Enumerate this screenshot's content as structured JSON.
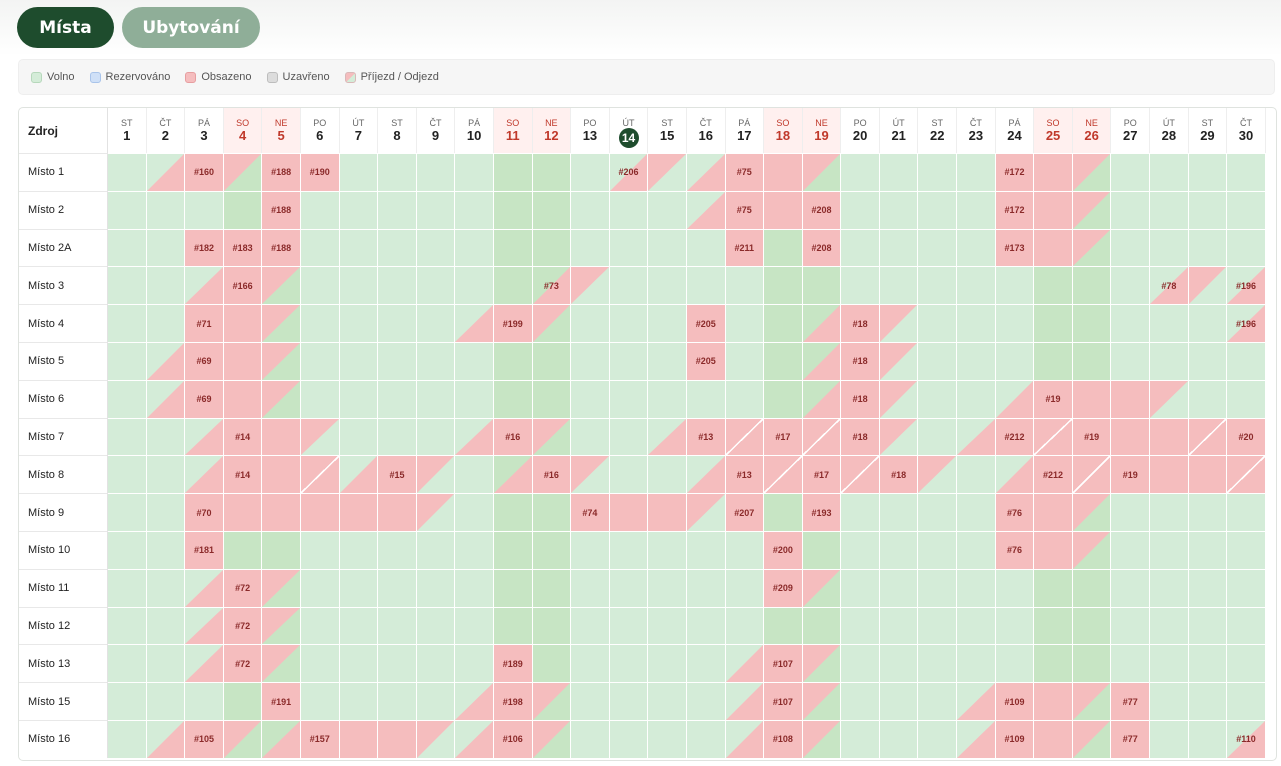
{
  "tabs": [
    {
      "label": "Místa",
      "active": true
    },
    {
      "label": "Ubytování",
      "active": false
    }
  ],
  "legend": [
    {
      "label": "Volno",
      "color": "#d4ecd8"
    },
    {
      "label": "Rezervováno",
      "color": "#cfe0f7"
    },
    {
      "label": "Obsazeno",
      "color": "#f5bdbe"
    },
    {
      "label": "Uzavřeno",
      "color": "#dcdcdc"
    },
    {
      "label": "Příjezd / Odjezd",
      "color": "split"
    }
  ],
  "header_label": "Zdroj",
  "today": 14,
  "days": [
    {
      "dn": "ST",
      "d": "1"
    },
    {
      "dn": "ČT",
      "d": "2"
    },
    {
      "dn": "PÁ",
      "d": "3"
    },
    {
      "dn": "SO",
      "d": "4",
      "we": true
    },
    {
      "dn": "NE",
      "d": "5",
      "we": true
    },
    {
      "dn": "PO",
      "d": "6"
    },
    {
      "dn": "ÚT",
      "d": "7"
    },
    {
      "dn": "ST",
      "d": "8"
    },
    {
      "dn": "ČT",
      "d": "9"
    },
    {
      "dn": "PÁ",
      "d": "10"
    },
    {
      "dn": "SO",
      "d": "11",
      "we": true
    },
    {
      "dn": "NE",
      "d": "12",
      "we": true
    },
    {
      "dn": "PO",
      "d": "13"
    },
    {
      "dn": "ÚT",
      "d": "14",
      "today": true
    },
    {
      "dn": "ST",
      "d": "15"
    },
    {
      "dn": "ČT",
      "d": "16"
    },
    {
      "dn": "PÁ",
      "d": "17"
    },
    {
      "dn": "SO",
      "d": "18",
      "we": true
    },
    {
      "dn": "NE",
      "d": "19",
      "we": true
    },
    {
      "dn": "PO",
      "d": "20"
    },
    {
      "dn": "ÚT",
      "d": "21"
    },
    {
      "dn": "ST",
      "d": "22"
    },
    {
      "dn": "ČT",
      "d": "23"
    },
    {
      "dn": "PÁ",
      "d": "24"
    },
    {
      "dn": "SO",
      "d": "25",
      "we": true
    },
    {
      "dn": "NE",
      "d": "26",
      "we": true
    },
    {
      "dn": "PO",
      "d": "27"
    },
    {
      "dn": "ÚT",
      "d": "28"
    },
    {
      "dn": "ST",
      "d": "29"
    },
    {
      "dn": "ČT",
      "d": "30"
    }
  ],
  "rows": [
    {
      "name": "Místo 1",
      "cells": {
        "2": "s",
        "3": "f|#160",
        "4": "e",
        "5": "f|#188",
        "6": "f|#190",
        "14": "s|#206",
        "15": "e",
        "16": "s",
        "17": "f|#75",
        "18": "f",
        "19": "e",
        "24": "f|#172",
        "25": "f",
        "26": "e"
      }
    },
    {
      "name": "Místo 2",
      "cells": {
        "5": "f|#188",
        "16": "s",
        "17": "f|#75",
        "18": "f",
        "19": "f|#208",
        "24": "f|#172",
        "25": "f",
        "26": "e"
      }
    },
    {
      "name": "Místo 2A",
      "cells": {
        "3": "f|#182",
        "4": "f|#183",
        "5": "f|#188",
        "17": "f|#211",
        "19": "f|#208",
        "24": "f|#173",
        "25": "f",
        "26": "e"
      }
    },
    {
      "name": "Místo 3",
      "cells": {
        "3": "s",
        "4": "f|#166",
        "5": "e",
        "12": "s|#73",
        "13": "e",
        "28": "s|#78",
        "29": "e",
        "30": "s|#196"
      }
    },
    {
      "name": "Místo 4",
      "cells": {
        "3": "f|#71",
        "4": "f",
        "5": "e",
        "10": "s",
        "11": "f|#199",
        "12": "e",
        "16": "f|#205",
        "19": "s",
        "20": "f|#18",
        "21": "e",
        "30": "s|#196"
      }
    },
    {
      "name": "Místo 5",
      "cells": {
        "2": "s",
        "3": "f|#69",
        "4": "f",
        "5": "e",
        "16": "f|#205",
        "19": "s",
        "20": "f|#18",
        "21": "e"
      }
    },
    {
      "name": "Místo 6",
      "cells": {
        "2": "s",
        "3": "f|#69",
        "4": "f",
        "5": "e",
        "19": "s",
        "20": "f|#18",
        "21": "e",
        "24": "s",
        "25": "f|#19",
        "26": "f",
        "27": "f",
        "28": "e"
      }
    },
    {
      "name": "Místo 7",
      "cells": {
        "3": "s",
        "4": "f|#14",
        "5": "f",
        "6": "e",
        "10": "s",
        "11": "f|#16",
        "12": "e",
        "15": "s",
        "16": "f|#13",
        "17": "x",
        "18": "f|#17",
        "19": "x",
        "20": "f|#18",
        "21": "e",
        "23": "s",
        "24": "f|#212",
        "25": "x",
        "26": "f|#19",
        "27": "f",
        "28": "f",
        "29": "x",
        "30": "f|#20",
        "31": "e"
      }
    },
    {
      "name": "Místo 8",
      "cells": {
        "3": "s",
        "4": "f|#14",
        "5": "f",
        "6": "x",
        "7": "s",
        "8": "f|#15",
        "9": "e",
        "11": "s",
        "12": "f|#16",
        "13": "e",
        "16": "s",
        "17": "f|#13",
        "18": "x",
        "19": "f|#17",
        "20": "x",
        "21": "f|#18",
        "22": "e",
        "24": "s",
        "25": "f|#212",
        "26": "x",
        "27": "f|#19",
        "28": "f",
        "29": "f",
        "30": "x",
        "31": "f|#20"
      }
    },
    {
      "name": "Místo 9",
      "cells": {
        "3": "f|#70",
        "4": "f",
        "5": "f",
        "6": "f",
        "7": "f",
        "8": "f",
        "9": "e",
        "13": "f|#74",
        "14": "f",
        "15": "f",
        "16": "e",
        "17": "f|#207",
        "19": "f|#193",
        "24": "f|#76",
        "25": "f",
        "26": "e"
      }
    },
    {
      "name": "Místo 10",
      "cells": {
        "3": "f|#181",
        "18": "f|#200",
        "24": "f|#76",
        "25": "f",
        "26": "e"
      }
    },
    {
      "name": "Místo 11",
      "cells": {
        "3": "s",
        "4": "f|#72",
        "5": "e",
        "18": "f|#209",
        "19": "e"
      }
    },
    {
      "name": "Místo 12",
      "cells": {
        "3": "s",
        "4": "f|#72",
        "5": "e"
      }
    },
    {
      "name": "Místo 13",
      "cells": {
        "3": "s",
        "4": "f|#72",
        "5": "e",
        "11": "f|#189",
        "17": "s",
        "18": "f|#107",
        "19": "e"
      }
    },
    {
      "name": "Místo 15",
      "cells": {
        "5": "f|#191",
        "10": "s",
        "11": "f|#198",
        "12": "e",
        "17": "s",
        "18": "f|#107",
        "19": "e",
        "23": "s",
        "24": "f|#109",
        "25": "f",
        "26": "e",
        "27": "f|#77"
      }
    },
    {
      "name": "Místo 16",
      "cells": {
        "2": "s",
        "3": "f|#105",
        "4": "e",
        "5": "s",
        "6": "f|#157",
        "7": "f",
        "8": "f",
        "9": "e",
        "10": "s",
        "11": "f|#106",
        "12": "e",
        "17": "s",
        "18": "f|#108",
        "19": "e",
        "23": "s",
        "24": "f|#109",
        "25": "f",
        "26": "e",
        "27": "f|#77",
        "30": "s|#110"
      }
    }
  ]
}
